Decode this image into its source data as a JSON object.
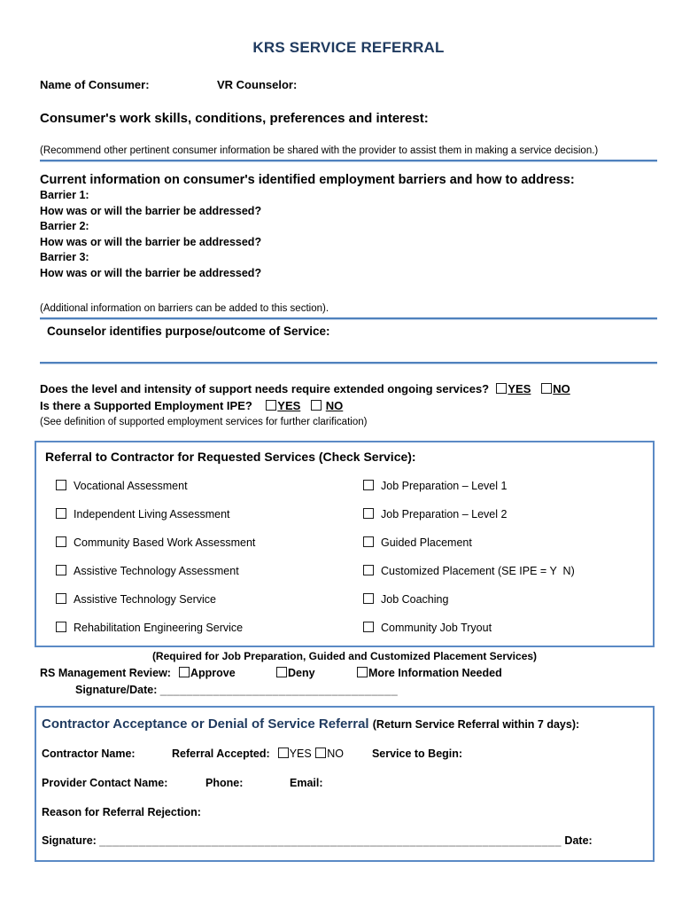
{
  "title": "KRS SERVICE REFERRAL",
  "consumer_row": {
    "name_label": "Name of Consumer:",
    "counselor_label": "VR Counselor:"
  },
  "skills": {
    "heading": "Consumer's work skills, conditions, preferences and interest:",
    "note": "(Recommend other pertinent consumer information be shared with the provider to assist them in making a service decision.)"
  },
  "barriers": {
    "heading": "Current information on consumer's identified employment barriers and how to address:",
    "items": [
      {
        "label": "Barrier 1:",
        "question": "How was or will the barrier be addressed?"
      },
      {
        "label": "Barrier 2:",
        "question": "How was or will the barrier be addressed?"
      },
      {
        "label": "Barrier 3:",
        "question": "How was or will the barrier be addressed?"
      }
    ],
    "note": "(Additional information on barriers can be added to this section)."
  },
  "purpose": {
    "heading": "Counselor identifies purpose/outcome of Service:"
  },
  "support_questions": {
    "q1": "Does the level and intensity of support needs require extended ongoing services?",
    "q1_yes": "YES",
    "q1_no": "NO",
    "q2": "Is there a Supported Employment IPE?",
    "q2_yes": "YES",
    "q2_no": "NO",
    "note": "(See definition of supported employment services for further clarification)"
  },
  "referral_box": {
    "heading": "Referral to Contractor for Requested Services (Check Service):",
    "left_services": [
      "Vocational Assessment",
      "Independent Living Assessment",
      "Community Based Work Assessment",
      "Assistive Technology Assessment",
      "Assistive Technology Service",
      "Rehabilitation Engineering Service"
    ],
    "right_services": [
      "Job Preparation – Level 1",
      "Job Preparation – Level 2",
      "Guided Placement",
      "Customized Placement (SE IPE = Y  N)",
      "Job Coaching",
      "Community Job Tryout"
    ]
  },
  "management_review": {
    "required_note": "(Required for Job Preparation, Guided and Customized Placement Services)",
    "label": "RS Management Review:",
    "options": [
      "Approve",
      "Deny",
      "More Information Needed"
    ],
    "signature_label": "Signature/Date:",
    "signature_line": "____________________________________"
  },
  "contractor_box": {
    "heading": "Contractor Acceptance or Denial of Service Referral",
    "heading_note": "(Return Service Referral within 7 days):",
    "contractor_name_label": "Contractor Name:",
    "referral_accepted_label": "Referral Accepted:",
    "yes": "YES",
    "no": "NO",
    "service_begin_label": "Service to Begin:",
    "provider_label": "Provider Contact Name:",
    "phone_label": "Phone:",
    "email_label": "Email:",
    "reason_label": "Reason for Referral Rejection:",
    "signature_label": "Signature:",
    "signature_line": "______________________________________________________________________",
    "date_label": "Date:"
  },
  "colors": {
    "navy": "#1f3a5f",
    "rule_blue": "#4f81bd",
    "box_border_blue": "#5b8ac5"
  }
}
